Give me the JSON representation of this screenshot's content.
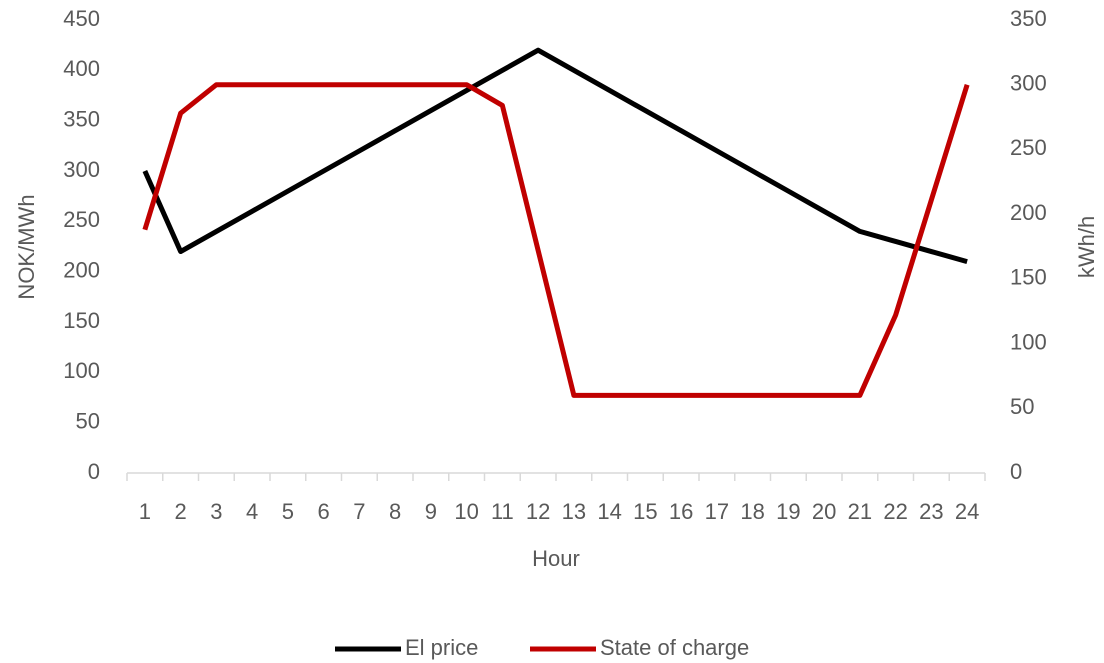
{
  "chart_data": {
    "type": "line",
    "x_label": "Hour",
    "y_label": "NOK/MWh",
    "y2_label": "kWh/h",
    "categories": [
      "1",
      "2",
      "3",
      "4",
      "5",
      "6",
      "7",
      "8",
      "9",
      "10",
      "11",
      "12",
      "13",
      "14",
      "15",
      "16",
      "17",
      "18",
      "19",
      "20",
      "21",
      "22",
      "23",
      "24"
    ],
    "series": [
      {
        "name": "El price",
        "color": "#000000",
        "values": [
          300,
          220,
          240,
          260,
          280,
          300,
          320,
          340,
          360,
          380,
          400,
          420,
          400,
          380,
          360,
          340,
          320,
          300,
          280,
          260,
          240,
          230,
          220,
          210
        ]
      },
      {
        "name": "State of charge",
        "color": "#c00000",
        "axis": "y2",
        "values": [
          188,
          278,
          300,
          300,
          300,
          300,
          300,
          300,
          300,
          300,
          284,
          172,
          60,
          60,
          60,
          60,
          60,
          60,
          60,
          60,
          60,
          122,
          211,
          300
        ]
      }
    ],
    "ylim": [
      0,
      450
    ],
    "yticks": [
      0,
      50,
      100,
      150,
      200,
      250,
      300,
      350,
      400,
      450
    ],
    "y2lim": [
      0,
      350
    ],
    "y2ticks": [
      0,
      50,
      100,
      150,
      200,
      250,
      300,
      350
    ],
    "legend": "bottom"
  }
}
